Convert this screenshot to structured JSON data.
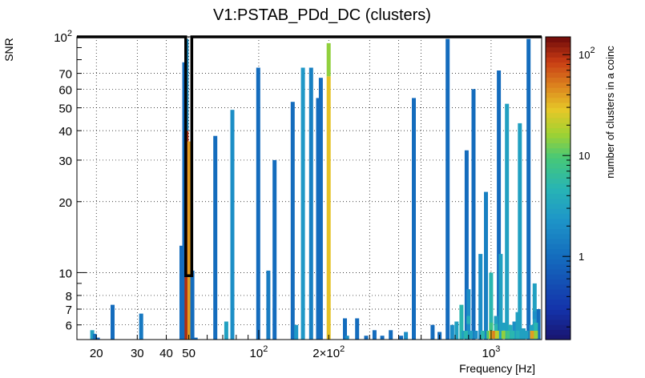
{
  "chart_data": {
    "type": "heatmap",
    "title": "V1:PSTAB_PDd_DC (clusters)",
    "xlabel": "Frequency [Hz]",
    "ylabel": "SNR",
    "xscale": "log",
    "yscale": "log",
    "xlim": [
      16.5,
      1650
    ],
    "ylim": [
      5.2,
      100
    ],
    "x_ticks": [
      {
        "value": 20,
        "label": "20"
      },
      {
        "value": 30,
        "label": "30"
      },
      {
        "value": 40,
        "label": "40"
      },
      {
        "value": 50,
        "label": "50"
      },
      {
        "value": 100,
        "label": "10",
        "exp": "2"
      },
      {
        "value": 200,
        "label": "2×10",
        "exp": "2"
      },
      {
        "value": 1000,
        "label": "10",
        "exp": "3"
      }
    ],
    "y_ticks": [
      {
        "value": 6,
        "label": "6"
      },
      {
        "value": 7,
        "label": "7"
      },
      {
        "value": 8,
        "label": "8"
      },
      {
        "value": 10,
        "label": "10"
      },
      {
        "value": 20,
        "label": "20"
      },
      {
        "value": 30,
        "label": "30"
      },
      {
        "value": 40,
        "label": "40"
      },
      {
        "value": 50,
        "label": "50"
      },
      {
        "value": 60,
        "label": "60"
      },
      {
        "value": 70,
        "label": "70"
      },
      {
        "value": 100,
        "label": "10",
        "exp": "2"
      }
    ],
    "colorbar": {
      "label": "number of clusters in a coinc",
      "scale": "log",
      "range": [
        0.15,
        150
      ],
      "ticks": [
        {
          "value": 1,
          "label": "1"
        },
        {
          "value": 10,
          "label": "10"
        },
        {
          "value": 100,
          "label": "10",
          "exp": "2"
        }
      ]
    },
    "highlight_box": {
      "x_range": [
        48.5,
        51.5
      ],
      "y_range": [
        9.7,
        100
      ]
    },
    "columns": [
      {
        "f": 19.2,
        "snr": 5.7,
        "c": 3
      },
      {
        "f": 19.7,
        "snr": 5.5,
        "c": 1.1
      },
      {
        "f": 20.3,
        "snr": 5.3,
        "c": 0.9
      },
      {
        "f": 23.5,
        "snr": 7.3,
        "c": 1
      },
      {
        "f": 31.2,
        "snr": 6.7,
        "c": 1.3
      },
      {
        "f": 38.5,
        "snr": 5.2,
        "c": 1.1
      },
      {
        "f": 46.5,
        "snr": 13,
        "c": 1
      },
      {
        "f": 47.8,
        "snr": 78,
        "c": 1
      },
      {
        "f": 48.9,
        "snr": 98,
        "c": 2,
        "segments": [
          {
            "y0": 5.2,
            "y1": 40,
            "c": 100
          },
          {
            "y0": 40,
            "y1": 98,
            "c": 2
          }
        ]
      },
      {
        "f": 50.3,
        "snr": 36,
        "c": 1,
        "segments": [
          {
            "y0": 5.2,
            "y1": 36,
            "c": 40
          }
        ]
      },
      {
        "f": 51.8,
        "snr": 10.2,
        "c": 1
      },
      {
        "f": 53.5,
        "snr": 5.3,
        "c": 1
      },
      {
        "f": 65,
        "snr": 38,
        "c": 1
      },
      {
        "f": 67,
        "snr": 5.2,
        "c": 1
      },
      {
        "f": 72.5,
        "snr": 6.2,
        "c": 3
      },
      {
        "f": 77,
        "snr": 49,
        "c": 2
      },
      {
        "f": 90,
        "snr": 5.2,
        "c": 1
      },
      {
        "f": 99.5,
        "snr": 74,
        "c": 1
      },
      {
        "f": 110,
        "snr": 10.2,
        "c": 1.4
      },
      {
        "f": 117,
        "snr": 30,
        "c": 1
      },
      {
        "f": 140,
        "snr": 53,
        "c": 1
      },
      {
        "f": 145,
        "snr": 6,
        "c": 2.5
      },
      {
        "f": 155,
        "snr": 74,
        "c": 2.5
      },
      {
        "f": 168,
        "snr": 74,
        "c": 1.5
      },
      {
        "f": 180,
        "snr": 55,
        "c": 1
      },
      {
        "f": 185,
        "snr": 67,
        "c": 1
      },
      {
        "f": 200,
        "snr": 94,
        "c": 15,
        "segments": [
          {
            "y0": 5.2,
            "y1": 68,
            "c": 30
          },
          {
            "y0": 68,
            "y1": 94,
            "c": 15
          }
        ]
      },
      {
        "f": 235,
        "snr": 6.4,
        "c": 1
      },
      {
        "f": 240,
        "snr": 5.4,
        "c": 2
      },
      {
        "f": 265,
        "snr": 6.4,
        "c": 1
      },
      {
        "f": 290,
        "snr": 5.4,
        "c": 1
      },
      {
        "f": 315,
        "snr": 5.7,
        "c": 1
      },
      {
        "f": 340,
        "snr": 5.4,
        "c": 1
      },
      {
        "f": 370,
        "snr": 5.7,
        "c": 1
      },
      {
        "f": 410,
        "snr": 5.4,
        "c": 1
      },
      {
        "f": 430,
        "snr": 5.6,
        "c": 2
      },
      {
        "f": 465,
        "snr": 55,
        "c": 1
      },
      {
        "f": 560,
        "snr": 6,
        "c": 1
      },
      {
        "f": 600,
        "snr": 5.6,
        "c": 1
      },
      {
        "f": 650,
        "snr": 98,
        "c": 1
      },
      {
        "f": 680,
        "snr": 6,
        "c": 2
      },
      {
        "f": 710,
        "snr": 6.2,
        "c": 3
      },
      {
        "f": 745,
        "snr": 7.3,
        "c": 5
      },
      {
        "f": 785,
        "snr": 33,
        "c": 1
      },
      {
        "f": 800,
        "snr": 8.5,
        "c": 2
      },
      {
        "f": 840,
        "snr": 60,
        "c": 1
      },
      {
        "f": 900,
        "snr": 12,
        "c": 2
      },
      {
        "f": 950,
        "snr": 22,
        "c": 1.5
      },
      {
        "f": 1000,
        "snr": 10,
        "c": 5
      },
      {
        "f": 1050,
        "snr": 6.5,
        "c": 3
      },
      {
        "f": 1080,
        "snr": 72,
        "c": 1
      },
      {
        "f": 1100,
        "snr": 12,
        "c": 3
      },
      {
        "f": 1170,
        "snr": 52,
        "c": 3
      },
      {
        "f": 1210,
        "snr": 6,
        "c": 4
      },
      {
        "f": 1260,
        "snr": 6.2,
        "c": 2
      },
      {
        "f": 1300,
        "snr": 6.8,
        "c": 3
      },
      {
        "f": 1330,
        "snr": 43,
        "c": 3
      },
      {
        "f": 1380,
        "snr": 5.8,
        "c": 3
      },
      {
        "f": 1450,
        "snr": 98,
        "c": 1
      },
      {
        "f": 1490,
        "snr": 6,
        "c": 3
      },
      {
        "f": 1540,
        "snr": 9,
        "c": 3
      },
      {
        "f": 1600,
        "snr": 7,
        "c": 1
      }
    ],
    "cells": [
      {
        "f": 760,
        "snr": 5.45,
        "c": 3
      },
      {
        "f": 780,
        "snr": 5.45,
        "c": 5
      },
      {
        "f": 820,
        "snr": 5.45,
        "c": 3
      },
      {
        "f": 860,
        "snr": 5.45,
        "c": 2
      },
      {
        "f": 920,
        "snr": 5.45,
        "c": 5
      },
      {
        "f": 975,
        "snr": 5.45,
        "c": 10
      },
      {
        "f": 1000,
        "snr": 5.45,
        "c": 30
      },
      {
        "f": 1030,
        "snr": 5.45,
        "c": 50
      },
      {
        "f": 1060,
        "snr": 5.45,
        "c": 20
      },
      {
        "f": 1130,
        "snr": 5.45,
        "c": 15
      },
      {
        "f": 1180,
        "snr": 5.45,
        "c": 8
      },
      {
        "f": 1240,
        "snr": 5.45,
        "c": 5
      },
      {
        "f": 1300,
        "snr": 5.45,
        "c": 4
      },
      {
        "f": 1420,
        "snr": 5.45,
        "c": 3
      },
      {
        "f": 1500,
        "snr": 5.45,
        "c": 40
      },
      {
        "f": 1560,
        "snr": 5.45,
        "c": 15
      },
      {
        "f": 1000,
        "snr": 5.9,
        "c": 8
      },
      {
        "f": 1050,
        "snr": 5.9,
        "c": 5
      },
      {
        "f": 1130,
        "snr": 5.9,
        "c": 3
      },
      {
        "f": 1560,
        "snr": 5.9,
        "c": 5
      },
      {
        "f": 1050,
        "snr": 6.3,
        "c": 3
      },
      {
        "f": 800,
        "snr": 6.3,
        "c": 4
      },
      {
        "f": 1540,
        "snr": 6.6,
        "c": 2
      }
    ]
  }
}
